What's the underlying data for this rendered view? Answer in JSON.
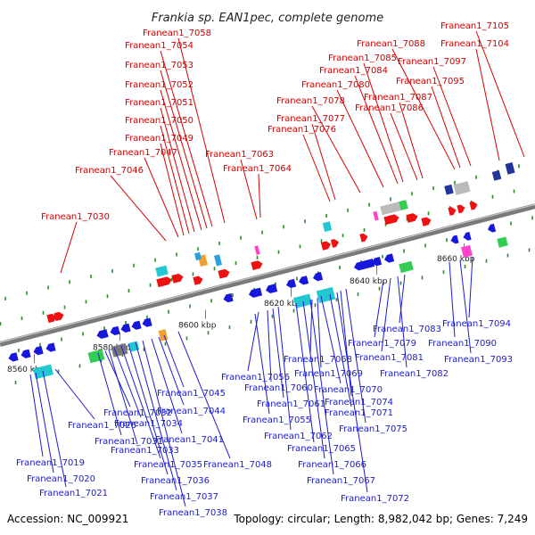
{
  "title": "Frankia sp. EAN1pec, complete genome",
  "footer": {
    "accession": "Accession: NC_009921",
    "summary": "Topology: circular; Length: 8,982,042 bp; Genes: 7,249"
  },
  "colors": {
    "forward_label": "#d40000",
    "reverse_label": "#1b1bd0",
    "forward_gene": "#ee1111",
    "reverse_gene": "#1818dd",
    "backbone": "#7a7a7a",
    "tick": "#2a8a2a"
  },
  "scale_labels": [
    "8560 kbp",
    "8580 kbp",
    "8600 kbp",
    "8620 kbp",
    "8640 kbp",
    "8660 kbp"
  ],
  "top_genes": [
    "Franean1_7030",
    "Franean1_7046",
    "Franean1_7047",
    "Franean1_7049",
    "Franean1_7050",
    "Franean1_7051",
    "Franean1_7052",
    "Franean1_7053",
    "Franean1_7054",
    "Franean1_7058",
    "Franean1_7063",
    "Franean1_7064",
    "Franean1_7076",
    "Franean1_7077",
    "Franean1_7078",
    "Franean1_7080",
    "Franean1_7084",
    "Franean1_7085",
    "Franean1_7086",
    "Franean1_7087",
    "Franean1_7088",
    "Franean1_7095",
    "Franean1_7097",
    "Franean1_7104",
    "Franean1_7105"
  ],
  "bottom_genes": [
    "Franean1_7019",
    "Franean1_7020",
    "Franean1_7021",
    "Franean1_7026",
    "Franean1_7031",
    "Franean1_7032",
    "Franean1_7033",
    "Franean1_7034",
    "Franean1_7035",
    "Franean1_7036",
    "Franean1_7037",
    "Franean1_7038",
    "Franean1_7041",
    "Franean1_7044",
    "Franean1_7045",
    "Franean1_7048",
    "Franean1_7055",
    "Franean1_7056",
    "Franean1_7060",
    "Franean1_7061",
    "Franean1_7062",
    "Franean1_7065",
    "Franean1_7066",
    "Franean1_7067",
    "Franean1_7068",
    "Franean1_7069",
    "Franean1_7070",
    "Franean1_7071",
    "Franean1_7072",
    "Franean1_7074",
    "Franean1_7075",
    "Franean1_7079",
    "Franean1_7081",
    "Franean1_7082",
    "Franean1_7083",
    "Franean1_7090",
    "Franean1_7093",
    "Franean1_7094"
  ]
}
